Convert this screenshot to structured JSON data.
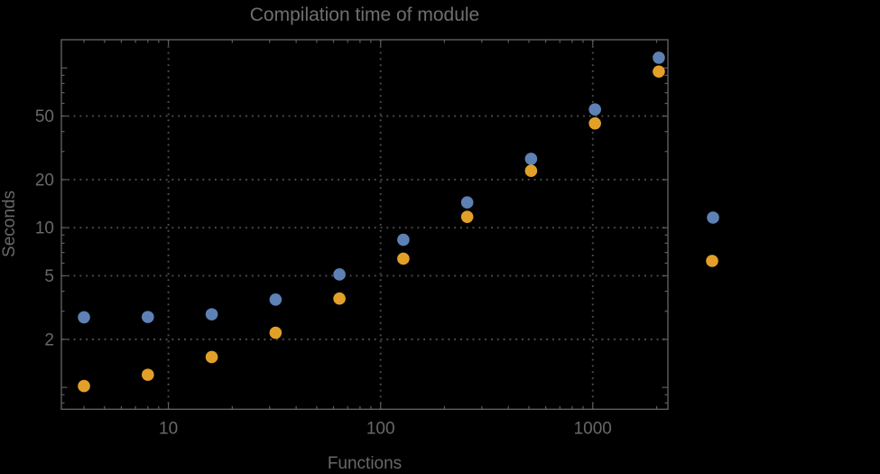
{
  "chart": {
    "title": "Compilation time of module",
    "xlabel": "Functions",
    "ylabel": "Seconds"
  },
  "chart_data": {
    "type": "scatter",
    "x_scale": "log",
    "y_scale": "log",
    "grid": "dotted",
    "x": [
      4,
      8,
      16,
      32,
      64,
      128,
      256,
      512,
      1024,
      2048
    ],
    "series": [
      {
        "name": "series-blue",
        "color": "#5E81B5",
        "values": [
          2.75,
          2.76,
          2.87,
          3.55,
          5.1,
          8.4,
          14.4,
          27,
          55,
          116
        ]
      },
      {
        "name": "series-orange",
        "color": "#E3A028",
        "values": [
          1.02,
          1.2,
          1.55,
          2.2,
          3.6,
          6.4,
          11.7,
          22.7,
          45,
          95
        ]
      }
    ],
    "title": "Compilation time of module",
    "xlabel": "Functions",
    "ylabel": "Seconds",
    "xlim": [
      3.13,
      2260
    ],
    "ylim": [
      0.73,
      150.3
    ],
    "x_ticks": [
      10,
      100,
      1000
    ],
    "y_ticks": [
      2,
      5,
      10,
      20,
      50
    ],
    "x_minor_ticks": [
      4,
      5,
      6,
      7,
      8,
      9,
      20,
      30,
      40,
      50,
      60,
      70,
      80,
      90,
      200,
      300,
      400,
      500,
      600,
      700,
      800,
      900,
      2000
    ],
    "y_minor_ticks": [
      0.8,
      0.9,
      3,
      4,
      6,
      7,
      8,
      9,
      30,
      40,
      60,
      70,
      80,
      90
    ],
    "y_unlabeled_major_ticks": [
      1,
      100
    ],
    "legend_position": "right-outside",
    "legend_markers": [
      {
        "name": "legend-marker-blue",
        "color": "#5E81B5"
      },
      {
        "name": "legend-marker-orange",
        "color": "#E3A028"
      }
    ]
  },
  "colors": {
    "background": "#000000",
    "frame": "#5e5e5e",
    "grid": "#4c4c4c",
    "text": "#686868",
    "title": "#6f6f6f",
    "series_blue": "#5E81B5",
    "series_orange": "#E3A028"
  }
}
